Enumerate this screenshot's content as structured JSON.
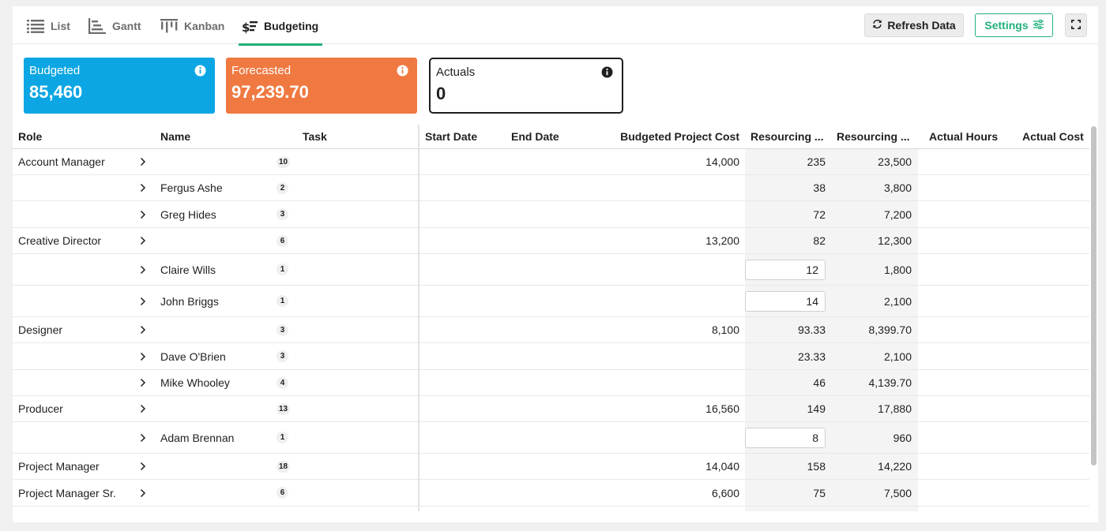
{
  "tabs": [
    {
      "label": "List",
      "icon": "list-icon",
      "active": false
    },
    {
      "label": "Gantt",
      "icon": "gantt-icon",
      "active": false
    },
    {
      "label": "Kanban",
      "icon": "kanban-icon",
      "active": false
    },
    {
      "label": "Budgeting",
      "icon": "budgeting-icon",
      "active": true
    }
  ],
  "toolbar": {
    "refresh_label": "Refresh Data",
    "settings_label": "Settings",
    "expand_icon": "expand-icon"
  },
  "colors": {
    "accent": "#22b07a",
    "budgeted": "#0ba6e3",
    "forecasted": "#ef7941"
  },
  "summary": {
    "budgeted": {
      "label": "Budgeted",
      "value": "85,460"
    },
    "forecasted": {
      "label": "Forecasted",
      "value": "97,239.70"
    },
    "actuals": {
      "label": "Actuals",
      "value": "0"
    }
  },
  "columns": [
    "Role",
    "Name",
    "Task",
    "Start Date",
    "End Date",
    "Budgeted Project Cost",
    "Resourcing ...",
    "Resourcing ...",
    "Actual Hours",
    "Actual Cost"
  ],
  "rows": [
    {
      "role": "Account Manager",
      "name": "",
      "count": "10",
      "budget": "14,000",
      "hours": "235",
      "cost": "23,500",
      "editable": false
    },
    {
      "role": "",
      "name": "Fergus Ashe",
      "count": "2",
      "budget": "",
      "hours": "38",
      "cost": "3,800",
      "editable": false
    },
    {
      "role": "",
      "name": "Greg Hides",
      "count": "3",
      "budget": "",
      "hours": "72",
      "cost": "7,200",
      "editable": false
    },
    {
      "role": "Creative Director",
      "name": "",
      "count": "6",
      "budget": "13,200",
      "hours": "82",
      "cost": "12,300",
      "editable": false
    },
    {
      "role": "",
      "name": "Claire Wills",
      "count": "1",
      "budget": "",
      "hours": "12",
      "cost": "1,800",
      "editable": true
    },
    {
      "role": "",
      "name": "John Briggs",
      "count": "1",
      "budget": "",
      "hours": "14",
      "cost": "2,100",
      "editable": true
    },
    {
      "role": "Designer",
      "name": "",
      "count": "3",
      "budget": "8,100",
      "hours": "93.33",
      "cost": "8,399.70",
      "editable": false
    },
    {
      "role": "",
      "name": "Dave O'Brien",
      "count": "3",
      "budget": "",
      "hours": "23.33",
      "cost": "2,100",
      "editable": false
    },
    {
      "role": "",
      "name": "Mike Whooley",
      "count": "4",
      "budget": "",
      "hours": "46",
      "cost": "4,139.70",
      "editable": false
    },
    {
      "role": "Producer",
      "name": "",
      "count": "13",
      "budget": "16,560",
      "hours": "149",
      "cost": "17,880",
      "editable": false
    },
    {
      "role": "",
      "name": "Adam Brennan",
      "count": "1",
      "budget": "",
      "hours": "8",
      "cost": "960",
      "editable": true
    },
    {
      "role": "Project Manager",
      "name": "",
      "count": "18",
      "budget": "14,040",
      "hours": "158",
      "cost": "14,220",
      "editable": false
    },
    {
      "role": "Project Manager Sr.",
      "name": "",
      "count": "6",
      "budget": "6,600",
      "hours": "75",
      "cost": "7,500",
      "editable": false
    }
  ]
}
